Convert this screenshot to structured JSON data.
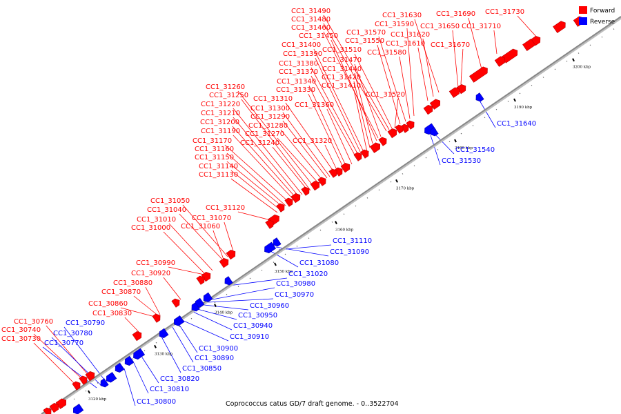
{
  "caption": "Coprococcus catus GD/7 draft genome. - 0..3522704",
  "legend": [
    {
      "label": "Forward",
      "color": "#ff0000"
    },
    {
      "label": "Reverse",
      "color": "#0000ff"
    }
  ],
  "colors": {
    "forward": "#ff0000",
    "reverse": "#0000ff",
    "axis": "#888888"
  },
  "ticks": [
    "3120 kbp",
    "3130 kbp",
    "3140 kbp",
    "3150 kbp",
    "3160 kbp",
    "3170 kbp",
    "3180 kbp",
    "3190 kbp",
    "3200 kbp"
  ],
  "forward_genes": [
    "CC1_31730",
    "CC1_31710",
    "CC1_31690",
    "CC1_31670",
    "CC1_31650",
    "CC1_31630",
    "CC1_31620",
    "CC1_31610",
    "CC1_31590",
    "CC1_31580",
    "CC1_31570",
    "CC1_31550",
    "CC1_31520",
    "CC1_31510",
    "CC1_31490",
    "CC1_31480",
    "CC1_31470",
    "CC1_31460",
    "CC1_31450",
    "CC1_31440",
    "CC1_31420",
    "CC1_31410",
    "CC1_31400",
    "CC1_31390",
    "CC1_31380",
    "CC1_31370",
    "CC1_31360",
    "CC1_31340",
    "CC1_31330",
    "CC1_31320",
    "CC1_31310",
    "CC1_31300",
    "CC1_31290",
    "CC1_31280",
    "CC1_31270",
    "CC1_31260",
    "CC1_31250",
    "CC1_31240",
    "CC1_31220",
    "CC1_31210",
    "CC1_31200",
    "CC1_31190",
    "CC1_31170",
    "CC1_31160",
    "CC1_31150",
    "CC1_31140",
    "CC1_31130",
    "CC1_31120",
    "CC1_31070",
    "CC1_31060",
    "CC1_31050",
    "CC1_31040",
    "CC1_31010",
    "CC1_31000",
    "CC1_30990",
    "CC1_30920",
    "CC1_30880",
    "CC1_30870",
    "CC1_30860",
    "CC1_30830",
    "CC1_30760",
    "CC1_30740",
    "CC1_30730"
  ],
  "reverse_genes": [
    "CC1_31640",
    "CC1_31540",
    "CC1_31530",
    "CC1_31110",
    "CC1_31090",
    "CC1_31080",
    "CC1_31020",
    "CC1_30980",
    "CC1_30970",
    "CC1_30960",
    "CC1_30950",
    "CC1_30940",
    "CC1_30910",
    "CC1_30900",
    "CC1_30890",
    "CC1_30850",
    "CC1_30820",
    "CC1_30810",
    "CC1_30800",
    "CC1_30790",
    "CC1_30780",
    "CC1_30770"
  ]
}
